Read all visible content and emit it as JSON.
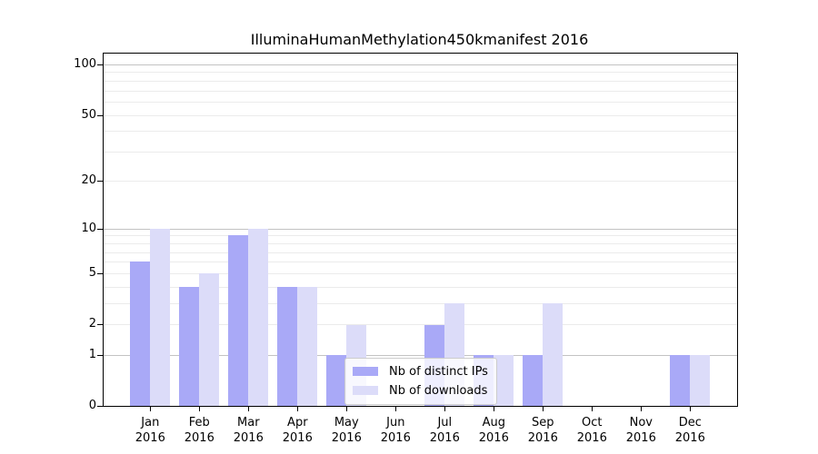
{
  "chart_data": {
    "type": "bar",
    "title": "IlluminaHumanMethylation450kmanifest 2016",
    "categories": [
      "Jan 2016",
      "Feb 2016",
      "Mar 2016",
      "Apr 2016",
      "May 2016",
      "Jun 2016",
      "Jul 2016",
      "Aug 2016",
      "Sep 2016",
      "Oct 2016",
      "Nov 2016",
      "Dec 2016"
    ],
    "series": [
      {
        "name": "Nb of distinct IPs",
        "color": "#a9a9f7",
        "values": [
          6,
          4,
          9,
          4,
          1,
          0,
          2,
          1,
          1,
          0,
          0,
          1
        ]
      },
      {
        "name": "Nb of downloads",
        "color": "#dcdcf9",
        "values": [
          10,
          5,
          10,
          4,
          2,
          0,
          3,
          1,
          3,
          0,
          0,
          1
        ]
      }
    ],
    "xlabel": "",
    "ylabel": "",
    "ylim": [
      0,
      100
    ],
    "yscale": "log1p",
    "ytick_labels": [
      0,
      1,
      2,
      5,
      10,
      20,
      50,
      100
    ],
    "major_gridlines": [
      1,
      10,
      100
    ],
    "minor_gridlines": [
      2,
      3,
      4,
      5,
      6,
      7,
      8,
      9,
      20,
      30,
      40,
      50,
      60,
      70,
      80,
      90
    ],
    "grid": "on",
    "legend_position": "lower center-left inside plot",
    "colors": {
      "spine": "#000000",
      "major_grid": "#c3c3c3",
      "minor_grid": "#ebebeb",
      "tick_label": "#000000",
      "background": "#ffffff"
    }
  }
}
